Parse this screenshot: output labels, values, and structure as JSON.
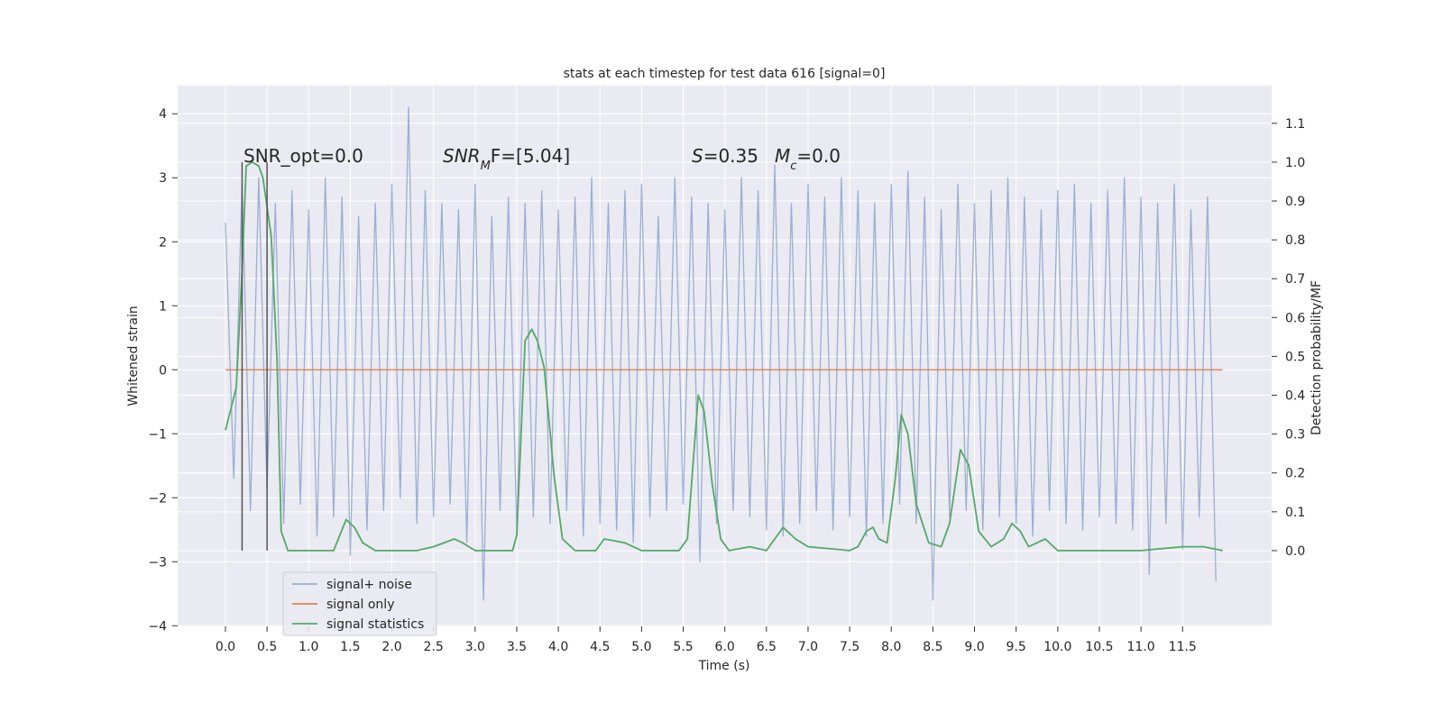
{
  "chart_data": {
    "type": "line",
    "title": "stats at each timestep for test data 616 [signal=0]",
    "xlabel": "Time (s)",
    "ylabel": "Whitened strain",
    "y2label": "Detection probability/MF",
    "xlim": [
      -0.574,
      12.57
    ],
    "ylim": [
      -4.01,
      4.44
    ],
    "y2lim": [
      -0.195,
      1.197
    ],
    "xticks": [
      {
        "value": 0,
        "label": "0.0"
      },
      {
        "value": 0.5,
        "label": "0.5"
      },
      {
        "value": 1,
        "label": "1.0"
      },
      {
        "value": 1.5,
        "label": "1.5"
      },
      {
        "value": 2,
        "label": "2.0"
      },
      {
        "value": 2.5,
        "label": "2.5"
      },
      {
        "value": 3,
        "label": "3.0"
      },
      {
        "value": 3.5,
        "label": "3.5"
      },
      {
        "value": 4,
        "label": "4.0"
      },
      {
        "value": 4.5,
        "label": "4.5"
      },
      {
        "value": 5,
        "label": "5.0"
      },
      {
        "value": 5.5,
        "label": "5.5"
      },
      {
        "value": 6,
        "label": "6.0"
      },
      {
        "value": 6.5,
        "label": "6.5"
      },
      {
        "value": 7,
        "label": "7.0"
      },
      {
        "value": 7.5,
        "label": "7.5"
      },
      {
        "value": 8,
        "label": "8.0"
      },
      {
        "value": 8.5,
        "label": "8.5"
      },
      {
        "value": 9,
        "label": "9.0"
      },
      {
        "value": 9.5,
        "label": "9.5"
      },
      {
        "value": 10,
        "label": "10.0"
      },
      {
        "value": 10.5,
        "label": "10.5"
      },
      {
        "value": 11,
        "label": "11.0"
      },
      {
        "value": 11.5,
        "label": "11.5"
      }
    ],
    "yticks": [
      {
        "value": -4,
        "label": "−4"
      },
      {
        "value": -3,
        "label": "−3"
      },
      {
        "value": -2,
        "label": "−2"
      },
      {
        "value": -1,
        "label": "−1"
      },
      0,
      1,
      2,
      3,
      4
    ],
    "y2ticks": [
      {
        "value": 0,
        "label": "0.0"
      },
      {
        "value": 0.1,
        "label": "0.1"
      },
      {
        "value": 0.2,
        "label": "0.2"
      },
      {
        "value": 0.3,
        "label": "0.3"
      },
      {
        "value": 0.4,
        "label": "0.4"
      },
      {
        "value": 0.5,
        "label": "0.5"
      },
      {
        "value": 0.6,
        "label": "0.6"
      },
      {
        "value": 0.7,
        "label": "0.7"
      },
      {
        "value": 0.8,
        "label": "0.8"
      },
      {
        "value": 0.9,
        "label": "0.9"
      },
      {
        "value": 1.0,
        "label": "1.0"
      },
      {
        "value": 1.1,
        "label": "1.1"
      }
    ],
    "grid": true,
    "legend": "lower left",
    "series": [
      {
        "name": "signal+ noise",
        "color": "#4c72b0",
        "opacity": 0.5,
        "x": [
          0.0,
          0.1,
          0.2,
          0.3,
          0.4,
          0.5,
          0.6,
          0.7,
          0.8,
          0.9,
          1.0,
          1.1,
          1.2,
          1.3,
          1.4,
          1.5,
          1.6,
          1.7,
          1.8,
          1.9,
          2.0,
          2.1,
          2.2,
          2.3,
          2.4,
          2.5,
          2.6,
          2.7,
          2.8,
          2.9,
          3.0,
          3.1,
          3.2,
          3.3,
          3.4,
          3.5,
          3.6,
          3.7,
          3.8,
          3.9,
          4.0,
          4.1,
          4.2,
          4.3,
          4.4,
          4.5,
          4.6,
          4.7,
          4.8,
          4.9,
          5.0,
          5.1,
          5.2,
          5.3,
          5.4,
          5.5,
          5.6,
          5.7,
          5.8,
          5.9,
          6.0,
          6.1,
          6.2,
          6.3,
          6.4,
          6.5,
          6.6,
          6.7,
          6.8,
          6.9,
          7.0,
          7.1,
          7.2,
          7.3,
          7.4,
          7.5,
          7.6,
          7.7,
          7.8,
          7.9,
          8.0,
          8.1,
          8.2,
          8.3,
          8.4,
          8.5,
          8.6,
          8.7,
          8.8,
          8.9,
          9.0,
          9.1,
          9.2,
          9.3,
          9.4,
          9.5,
          9.6,
          9.7,
          9.8,
          9.9,
          10.0,
          10.1,
          10.2,
          10.3,
          10.4,
          10.5,
          10.6,
          10.7,
          10.8,
          10.9,
          11.0,
          11.1,
          11.2,
          11.3,
          11.4,
          11.5,
          11.6,
          11.7,
          11.8,
          11.9
        ],
        "values": [
          2.3,
          -1.7,
          2.9,
          -2.2,
          3.0,
          -1.9,
          2.6,
          -2.4,
          2.8,
          -2.1,
          2.5,
          -2.6,
          3.0,
          -2.3,
          2.7,
          -2.9,
          2.4,
          -2.5,
          2.6,
          -2.2,
          2.9,
          -2.0,
          4.1,
          -2.4,
          2.8,
          -2.3,
          2.6,
          -2.1,
          2.5,
          -2.7,
          2.9,
          -3.6,
          2.4,
          -2.2,
          2.7,
          -2.5,
          2.6,
          -2.3,
          2.8,
          -2.4,
          2.5,
          -2.2,
          2.7,
          -2.6,
          3.0,
          -2.4,
          2.6,
          -2.5,
          2.8,
          -2.7,
          2.9,
          -2.3,
          2.4,
          -2.2,
          3.0,
          -2.1,
          2.7,
          -3.0,
          2.6,
          -2.4,
          2.5,
          -2.2,
          3.0,
          -2.3,
          2.8,
          -2.5,
          3.2,
          -2.6,
          2.6,
          -2.4,
          2.9,
          -2.2,
          2.7,
          -2.5,
          3.0,
          -2.3,
          2.8,
          -2.6,
          2.6,
          -2.4,
          2.9,
          -2.1,
          3.1,
          -2.4,
          2.7,
          -3.6,
          2.5,
          -2.3,
          2.9,
          -2.2,
          2.6,
          -2.5,
          2.8,
          -2.3,
          3.0,
          -2.4,
          2.7,
          -2.6,
          2.5,
          -2.2,
          2.8,
          -2.4,
          2.9,
          -2.5,
          2.6,
          -2.3,
          2.8,
          -2.4,
          3.0,
          -2.5,
          2.7,
          -3.2,
          2.6,
          -2.4,
          2.9,
          -2.8,
          2.5,
          -2.3,
          2.7,
          -3.3
        ]
      },
      {
        "name": "signal only",
        "color": "#dd8452",
        "x": [
          0.0,
          11.98
        ],
        "values": [
          0,
          0
        ]
      },
      {
        "name": "signal statistics",
        "color": "#55a868",
        "axis": "y2",
        "x": [
          0.0,
          0.13,
          0.2,
          0.25,
          0.32,
          0.4,
          0.45,
          0.55,
          0.62,
          0.67,
          0.75,
          1.0,
          1.3,
          1.45,
          1.55,
          1.65,
          1.8,
          2.3,
          2.5,
          2.75,
          2.85,
          3.0,
          3.45,
          3.5,
          3.6,
          3.68,
          3.75,
          3.83,
          3.95,
          4.05,
          4.2,
          4.45,
          4.55,
          4.8,
          5.0,
          5.45,
          5.55,
          5.68,
          5.75,
          5.85,
          5.95,
          6.05,
          6.3,
          6.5,
          6.7,
          6.85,
          7.0,
          7.5,
          7.6,
          7.7,
          7.78,
          7.85,
          7.95,
          8.05,
          8.12,
          8.2,
          8.3,
          8.45,
          8.6,
          8.7,
          8.83,
          8.93,
          9.05,
          9.2,
          9.35,
          9.45,
          9.55,
          9.65,
          9.85,
          10.0,
          11.0,
          11.5,
          11.75,
          11.98
        ],
        "values": [
          0.31,
          0.42,
          0.72,
          0.99,
          1.0,
          0.99,
          0.96,
          0.81,
          0.49,
          0.05,
          0.0,
          0.0,
          0.0,
          0.08,
          0.06,
          0.02,
          0.0,
          0.0,
          0.01,
          0.03,
          0.02,
          0.0,
          0.0,
          0.04,
          0.54,
          0.57,
          0.54,
          0.47,
          0.19,
          0.03,
          0.0,
          0.0,
          0.03,
          0.02,
          0.0,
          0.0,
          0.03,
          0.4,
          0.36,
          0.17,
          0.03,
          0.0,
          0.01,
          0.0,
          0.06,
          0.03,
          0.01,
          0.0,
          0.01,
          0.05,
          0.06,
          0.03,
          0.02,
          0.19,
          0.35,
          0.3,
          0.12,
          0.02,
          0.01,
          0.07,
          0.26,
          0.22,
          0.05,
          0.01,
          0.03,
          0.07,
          0.05,
          0.01,
          0.03,
          0.0,
          0.0,
          0.01,
          0.01,
          0.0
        ]
      }
    ],
    "vlines": {
      "x": [
        0.2,
        0.5
      ],
      "ymin": 0,
      "ymax": 1,
      "axis": "y2",
      "color": "#555555"
    },
    "annotations": [
      {
        "parts": [
          "SNR_opt=0.0"
        ]
      },
      {
        "parts": [
          "SNR",
          "M",
          "F=[5.04]"
        ]
      },
      {
        "parts": [
          "S",
          "=0.35"
        ]
      },
      {
        "parts": [
          "M",
          "c",
          "=0.0"
        ]
      }
    ]
  }
}
